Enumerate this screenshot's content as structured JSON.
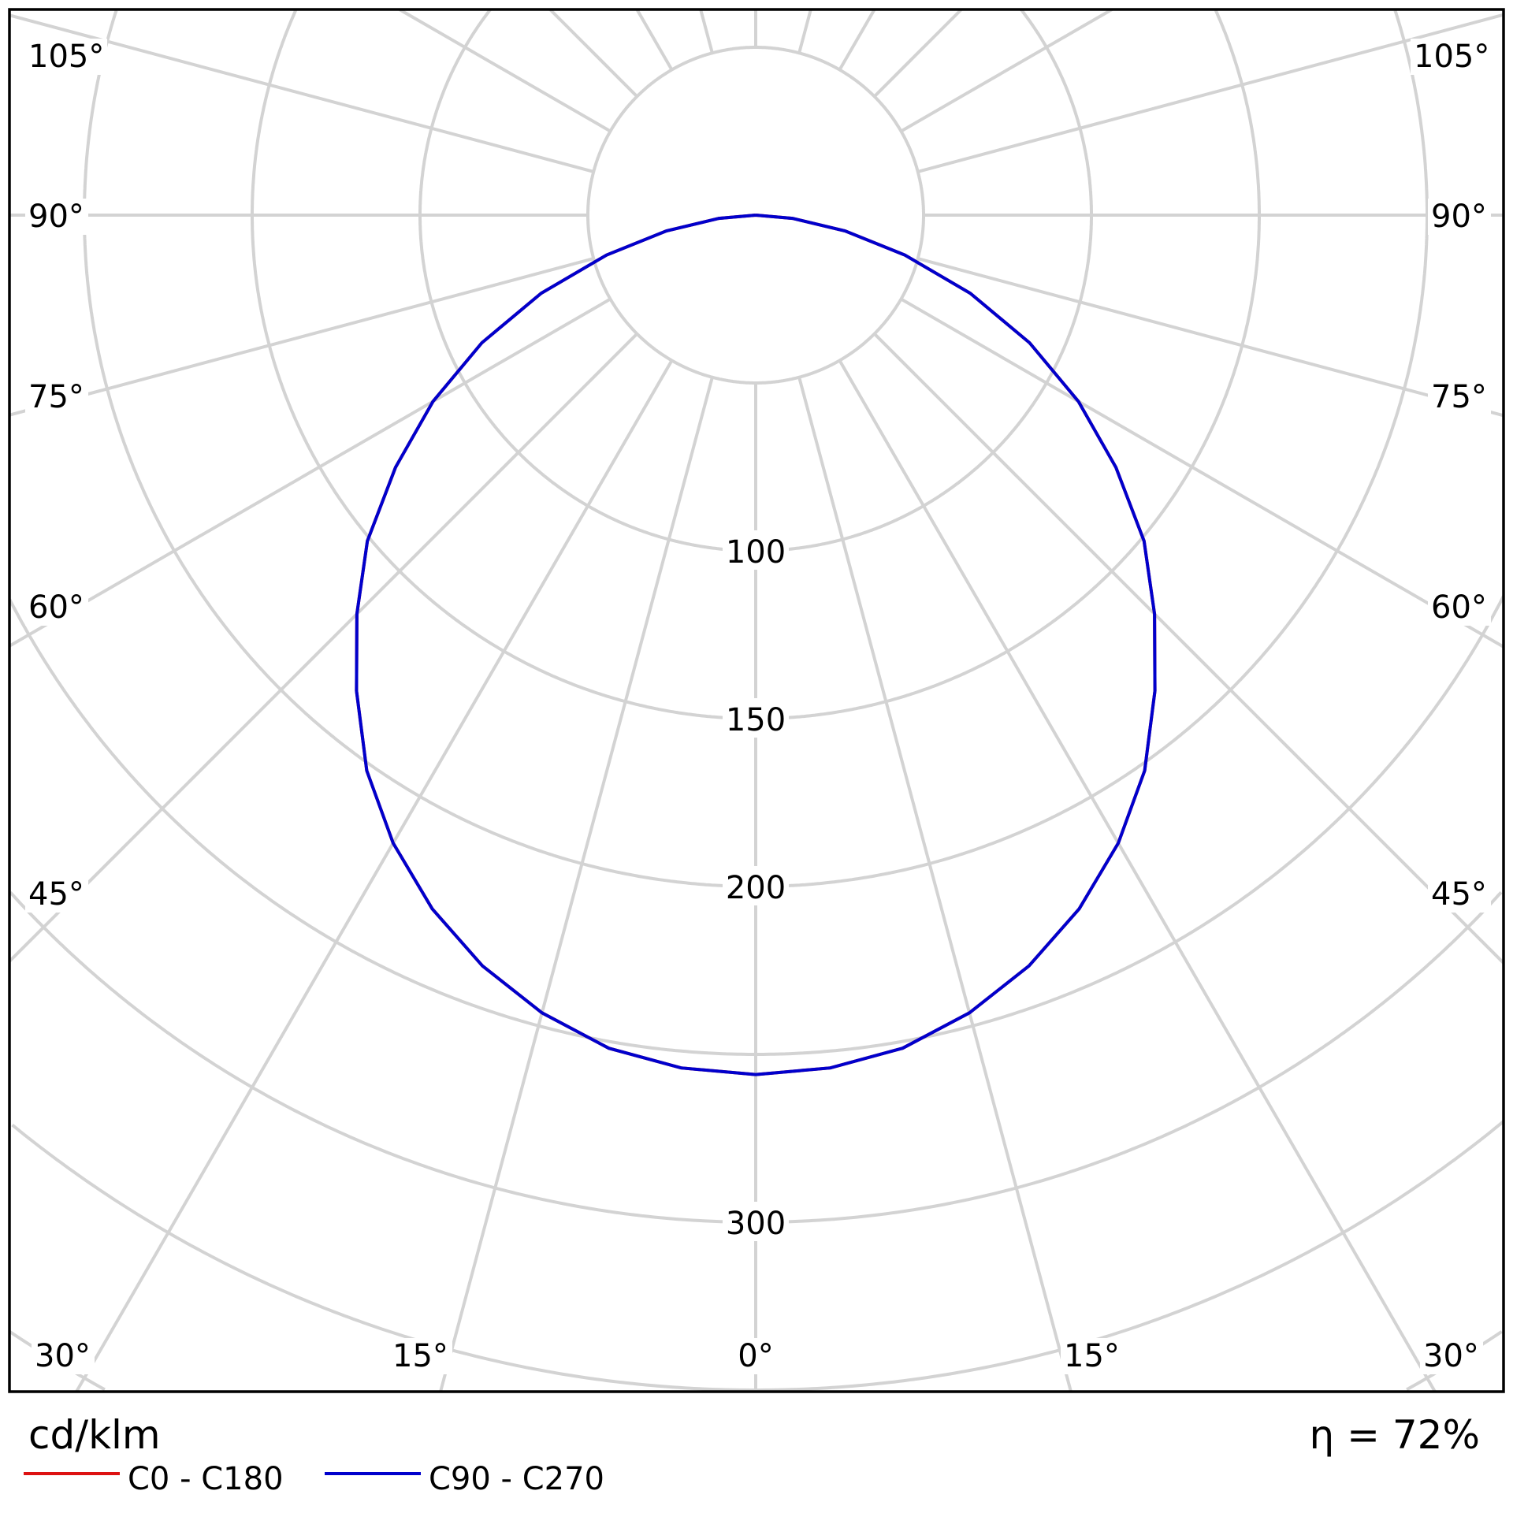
{
  "chart_data": {
    "type": "polar",
    "unit_label": "cd/klm",
    "efficiency_label": "η = 72%",
    "radial_ticks": [
      50,
      100,
      150,
      200,
      250,
      300,
      350,
      400,
      450
    ],
    "radial_tick_labels": [
      "100",
      "150",
      "200",
      "300"
    ],
    "angle_labels": {
      "left": [
        "105°",
        "90°",
        "75°",
        "60°",
        "45°",
        "30°",
        "15°"
      ],
      "center": "0°",
      "right": [
        "15°",
        "30°",
        "45°",
        "60°",
        "75°",
        "90°",
        "105°"
      ]
    },
    "grid": true,
    "legend_position": "bottom-left",
    "angles_deg": [
      0,
      5,
      10,
      15,
      20,
      25,
      30,
      35,
      40,
      45,
      50,
      55,
      60,
      65,
      70,
      75,
      80,
      85,
      90
    ],
    "series": [
      {
        "name": "C0 - C180",
        "color": "#dd1111",
        "values": [
          256,
          255,
          252,
          246,
          238,
          228,
          216,
          202,
          185,
          168,
          151,
          131,
          111,
          90,
          68,
          46,
          27,
          11,
          0
        ]
      },
      {
        "name": "C90 - C270",
        "color": "#0000cc",
        "values": [
          256,
          255,
          252,
          246,
          238,
          228,
          216,
          202,
          185,
          168,
          151,
          131,
          111,
          90,
          68,
          46,
          27,
          11,
          0
        ]
      }
    ]
  }
}
